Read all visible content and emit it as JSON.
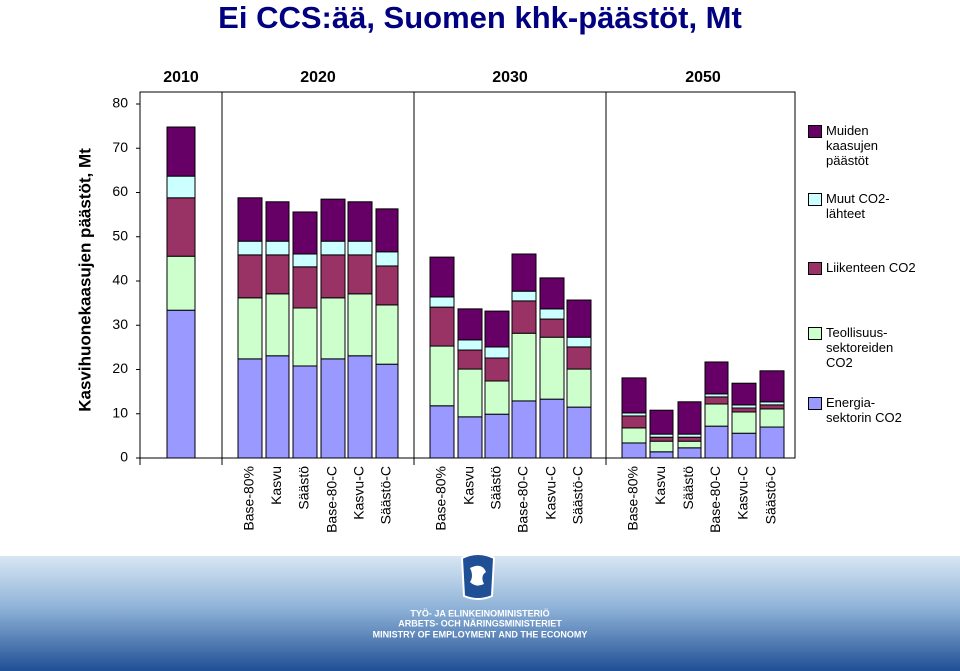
{
  "chart_data": {
    "type": "stacked_bar",
    "title": "Ei CCS:ää, Suomen khk-päästöt, Mt",
    "y_label": "Kasvihuonekaasujen päästöt, Mt",
    "group_labels": [
      "2010",
      "2020",
      "2030",
      "2050"
    ],
    "categories": [
      null,
      "Base-80%",
      "Kasvu",
      "Säästö",
      "Base-80-C",
      "Kasvu-C",
      "Säästö-C",
      "Base-80%",
      "Kasvu",
      "Säästö",
      "Base-80-C",
      "Kasvu-C",
      "Säästö-C",
      "Base-80%",
      "Kasvu",
      "Säästö",
      "Base-80-C",
      "Kasvu-C",
      "Säästö-C"
    ],
    "series": [
      {
        "name": "Energia-sektorin CO2",
        "color": "#9999ff",
        "values": [
          33.4,
          22.4,
          23.1,
          20.8,
          22.4,
          23.1,
          21.2,
          11.8,
          9.3,
          9.9,
          12.9,
          13.3,
          11.5,
          3.4,
          1.4,
          2.3,
          7.2,
          5.6,
          7.0
        ]
      },
      {
        "name": "Teollisuus-sektoreiden CO2",
        "color": "#ccffcc",
        "values": [
          12.2,
          13.8,
          14.0,
          13.1,
          13.8,
          14.0,
          13.4,
          13.5,
          10.8,
          7.5,
          15.3,
          14.0,
          8.6,
          3.4,
          2.4,
          1.5,
          5.0,
          4.8,
          4.1
        ]
      },
      {
        "name": "Liikenteen CO2",
        "color": "#993366",
        "values": [
          13.2,
          9.7,
          8.8,
          9.3,
          9.7,
          8.8,
          8.8,
          8.8,
          4.3,
          5.2,
          7.3,
          4.1,
          5.0,
          2.7,
          0.9,
          0.9,
          1.6,
          0.9,
          0.9
        ]
      },
      {
        "name": "Muut CO2-lähteet",
        "color": "#ccffff",
        "values": [
          4.9,
          3.1,
          3.1,
          2.9,
          3.1,
          3.1,
          3.2,
          2.3,
          2.3,
          2.5,
          2.2,
          2.3,
          2.2,
          0.7,
          0.7,
          0.7,
          0.7,
          0.7,
          0.7
        ]
      },
      {
        "name": "Muiden kaasujen päästöt",
        "color": "#660066",
        "values": [
          11.1,
          9.8,
          8.9,
          9.5,
          9.5,
          8.9,
          9.7,
          9.0,
          7.0,
          8.1,
          8.4,
          7.0,
          8.4,
          7.9,
          5.4,
          7.3,
          7.2,
          4.9,
          7.0
        ]
      }
    ],
    "ylim": [
      0,
      80
    ],
    "yticks": [
      0,
      10,
      20,
      30,
      40,
      50,
      60,
      70,
      80
    ]
  },
  "footer": {
    "lines": [
      "TYÖ- JA ELINKEINOMINISTERIÖ",
      "ARBETS- OCH NÄRINGSMINISTERIET",
      "MINISTRY OF EMPLOYMENT AND THE ECONOMY"
    ]
  }
}
